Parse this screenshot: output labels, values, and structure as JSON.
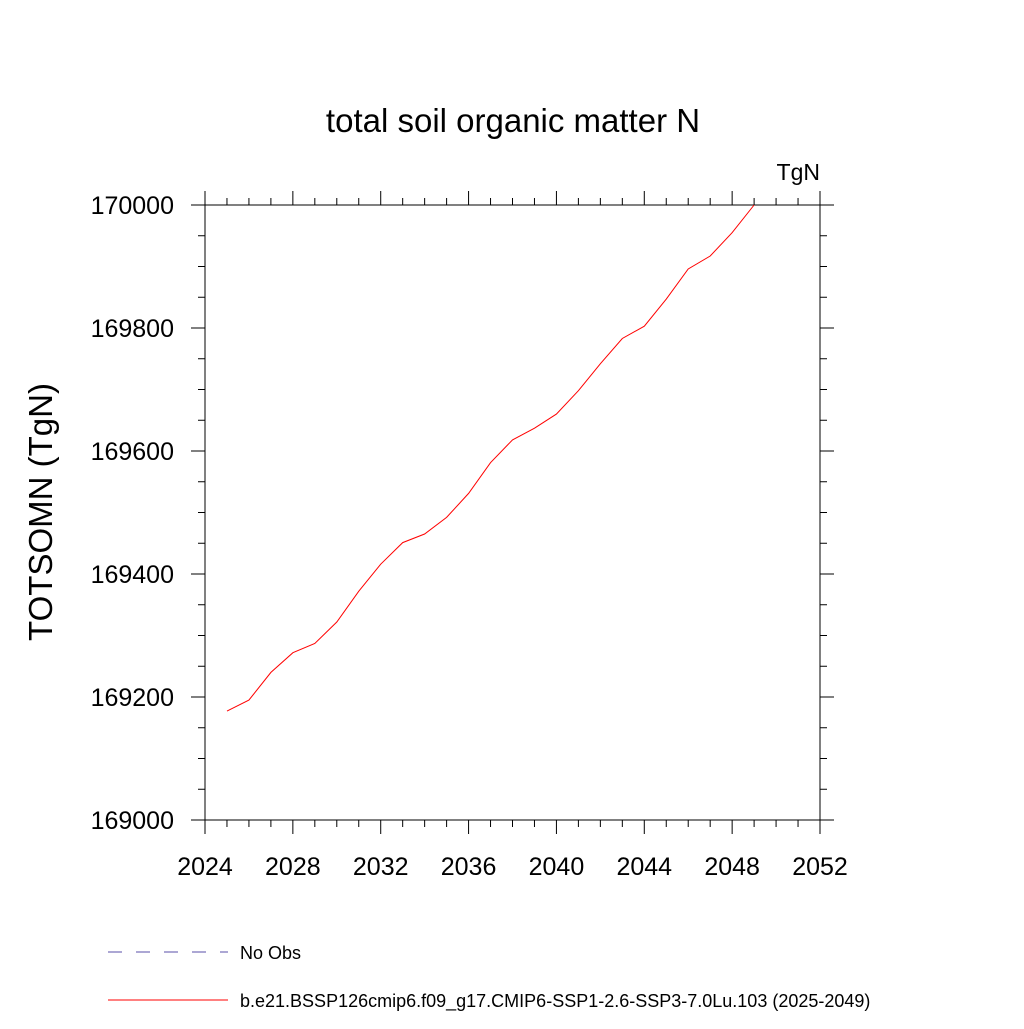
{
  "chart_data": {
    "type": "line",
    "title": "total soil organic matter N",
    "units_label": "TgN",
    "ylabel": "TOTSOMN  (TgN)",
    "xlabel": "",
    "xlim": [
      2024,
      2052
    ],
    "ylim": [
      169000,
      170000
    ],
    "x_ticks": [
      2024,
      2028,
      2032,
      2036,
      2040,
      2044,
      2048,
      2052
    ],
    "x_tick_labels": [
      "2024",
      "2028",
      "2032",
      "2036",
      "2040",
      "2044",
      "2048",
      "2052"
    ],
    "y_ticks": [
      169000,
      169200,
      169400,
      169600,
      169800,
      170000
    ],
    "y_tick_labels": [
      "169000",
      "169200",
      "169400",
      "169600",
      "169800",
      "170000"
    ],
    "grid": false,
    "legend_position": "bottom",
    "series": [
      {
        "name": "b.e21.BSSP126cmip6.f09_g17.CMIP6-SSP1-2.6-SSP3-7.0Lu.103 (2025-2049)",
        "color": "#ff0000",
        "x": [
          2025,
          2026,
          2027,
          2028,
          2029,
          2030,
          2031,
          2032,
          2033,
          2034,
          2035,
          2036,
          2037,
          2038,
          2039,
          2040,
          2041,
          2042,
          2043,
          2044,
          2045,
          2046,
          2047,
          2048,
          2049
        ],
        "y": [
          169177,
          169195,
          169240,
          169272,
          169287,
          169322,
          169372,
          169416,
          169451,
          169465,
          169492,
          169531,
          169581,
          169618,
          169637,
          169660,
          169698,
          169742,
          169783,
          169803,
          169847,
          169896,
          169917,
          169955,
          170000
        ]
      }
    ],
    "legend": [
      {
        "label": "No Obs",
        "color": "#5a4fa8",
        "style": "dashed"
      },
      {
        "label": "b.e21.BSSP126cmip6.f09_g17.CMIP6-SSP1-2.6-SSP3-7.0Lu.103 (2025-2049)",
        "color": "#ff0000",
        "style": "solid"
      }
    ]
  }
}
